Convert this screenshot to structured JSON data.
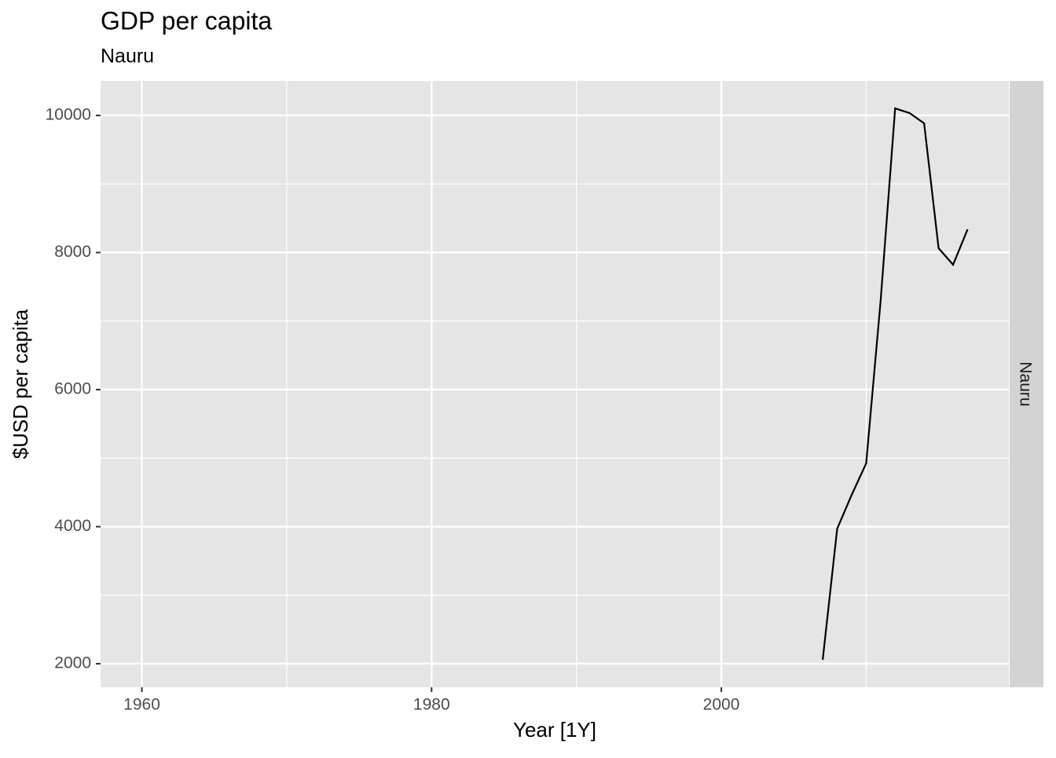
{
  "chart_data": {
    "type": "line",
    "title": "GDP per capita",
    "subtitle": "Nauru",
    "facet_label": "Nauru",
    "x_label": "Year [1Y]",
    "y_label": "$USD per capita",
    "x": [
      2007,
      2008,
      2009,
      2010,
      2011,
      2012,
      2013,
      2014,
      2015,
      2016,
      2017
    ],
    "series": [
      {
        "name": "Nauru",
        "color": "#000000",
        "values": [
          2057,
          3971,
          4464,
          4923,
          7300,
          10103,
          10034,
          9885,
          8063,
          7822,
          8338
        ]
      }
    ],
    "xlim": [
      1957.15,
      2019.85
    ],
    "xticks": [
      1960,
      1980,
      2000
    ],
    "minor_xticks": [
      1970,
      1990,
      2010
    ],
    "ylim": [
      1656,
      10504
    ],
    "yticks": [
      2000,
      4000,
      6000,
      8000,
      10000
    ],
    "minor_yticks": [
      3000,
      5000,
      7000,
      9000
    ],
    "grid": true
  }
}
